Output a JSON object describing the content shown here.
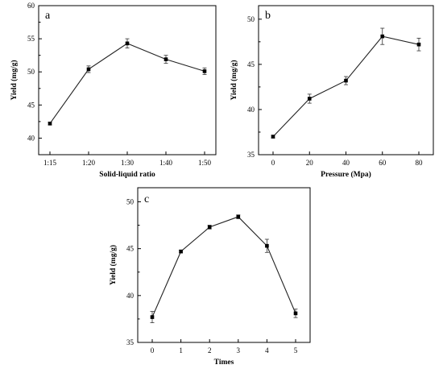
{
  "chart_data": [
    {
      "id": "a",
      "type": "line",
      "panel_label": "a",
      "xlabel": "Solid-liquid ratio",
      "ylabel": "Yield (mg/g)",
      "categories": [
        "1:15",
        "1:20",
        "1:30",
        "1:40",
        "1:50"
      ],
      "yticks": [
        40,
        45,
        50,
        55,
        60
      ],
      "ylim": [
        37.5,
        60
      ],
      "series": [
        {
          "values": [
            42.2,
            50.4,
            54.3,
            51.9,
            50.1
          ],
          "errors": [
            0.2,
            0.5,
            0.7,
            0.6,
            0.5
          ]
        }
      ],
      "grid": false,
      "marker": "square"
    },
    {
      "id": "b",
      "type": "line",
      "panel_label": "b",
      "xlabel": "Pressure (Mpa)",
      "ylabel": "Yield (mg/g)",
      "categories": [
        "0",
        "20",
        "40",
        "60",
        "80"
      ],
      "yticks": [
        35,
        40,
        45,
        50
      ],
      "ylim": [
        35,
        51.5
      ],
      "series": [
        {
          "values": [
            37.0,
            41.2,
            43.2,
            48.1,
            47.2
          ],
          "errors": [
            0.15,
            0.5,
            0.45,
            0.9,
            0.7
          ]
        }
      ],
      "grid": false,
      "marker": "square"
    },
    {
      "id": "c",
      "type": "line",
      "panel_label": "c",
      "xlabel": "Times",
      "ylabel": "Yield (mg/g)",
      "categories": [
        "0",
        "1",
        "2",
        "3",
        "4",
        "5"
      ],
      "yticks": [
        35,
        40,
        45,
        50
      ],
      "ylim": [
        35,
        51.5
      ],
      "series": [
        {
          "values": [
            37.7,
            44.7,
            47.3,
            48.4,
            45.3,
            38.1
          ],
          "errors": [
            0.6,
            0.15,
            0.2,
            0.2,
            0.7,
            0.45
          ]
        }
      ],
      "grid": false,
      "marker": "square"
    }
  ]
}
